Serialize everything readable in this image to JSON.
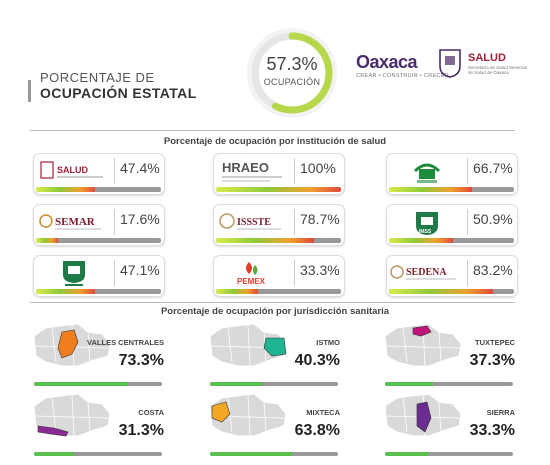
{
  "header": {
    "title_line1": "PORCENTAJE DE",
    "title_line2": "OCUPACIÓN ESTATAL",
    "overall_value": "57.3%",
    "overall_fraction": 0.573,
    "overall_label": "OCUPACIÓN",
    "logo_oaxaca": "Oaxaca",
    "logo_oaxaca_sub": "CREAR • CONSTRUIR • CRECER",
    "logo_salud": "SALUD",
    "logo_salud_sub": "Secretaría de Salud Servicios de Salud de Oaxaca"
  },
  "institutions": {
    "section_title": "Porcentaje de ocupación por institución de salud",
    "items": [
      {
        "name": "SALUD",
        "value": "47.4%",
        "fraction": 0.474,
        "logo": "salud-logo"
      },
      {
        "name": "HRAEO",
        "value": "100%",
        "fraction": 1.0,
        "logo": "hraeo-logo"
      },
      {
        "name": "HOSPITAL",
        "value": "66.7%",
        "fraction": 0.667,
        "logo": "hospital-logo"
      },
      {
        "name": "SEMAR",
        "value": "17.6%",
        "fraction": 0.176,
        "logo": "semar-logo"
      },
      {
        "name": "ISSSTE",
        "value": "78.7%",
        "fraction": 0.787,
        "logo": "issste-logo"
      },
      {
        "name": "IMSS",
        "value": "50.9%",
        "fraction": 0.509,
        "logo": "imss-logo"
      },
      {
        "name": "IMSS",
        "value": "47.1%",
        "fraction": 0.471,
        "logo": "imss-bienestar-logo"
      },
      {
        "name": "PEMEX",
        "value": "33.3%",
        "fraction": 0.333,
        "logo": "pemex-logo"
      },
      {
        "name": "SEDENA",
        "value": "83.2%",
        "fraction": 0.832,
        "logo": "sedena-logo"
      }
    ]
  },
  "jurisdictions": {
    "section_title": "Porcentaje de ocupación por jurisdicción sanitaria",
    "items": [
      {
        "name": "VALLES CENTRALES",
        "value": "73.3%",
        "fraction": 0.733,
        "color": "#f07e1e"
      },
      {
        "name": "ISTMO",
        "value": "40.3%",
        "fraction": 0.403,
        "color": "#1fb494"
      },
      {
        "name": "TUXTEPEC",
        "value": "37.3%",
        "fraction": 0.373,
        "color": "#c0147a"
      },
      {
        "name": "COSTA",
        "value": "31.3%",
        "fraction": 0.313,
        "color": "#8a2a94"
      },
      {
        "name": "MIXTECA",
        "value": "63.8%",
        "fraction": 0.638,
        "color": "#f5a623"
      },
      {
        "name": "SIERRA",
        "value": "33.3%",
        "fraction": 0.333,
        "color": "#6b2d8f"
      }
    ]
  },
  "colors": {
    "donut_track": "#e6e6e6",
    "bar_track": "#999999",
    "region_fill": "#59c04d",
    "map_gray": "#d9d9d9"
  }
}
